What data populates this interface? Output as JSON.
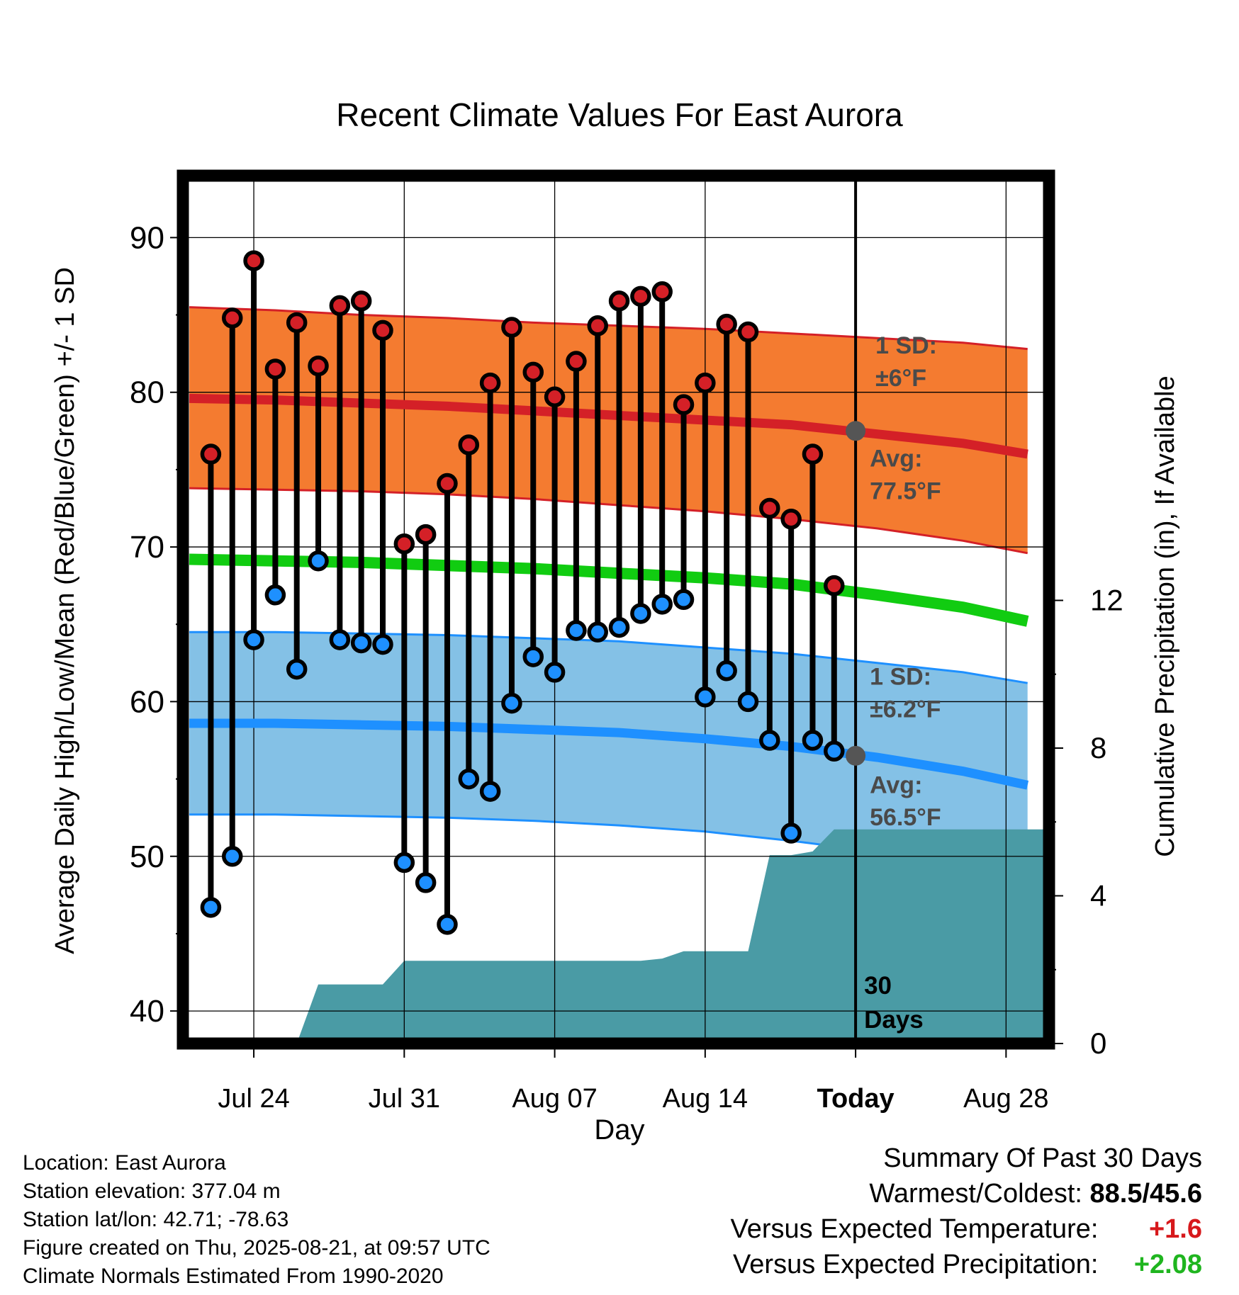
{
  "chart_data": {
    "type": "line",
    "title": "Recent Climate Values For East Aurora",
    "xlabel": "Day",
    "ylabel": "Average Daily High/Low/Mean (Red/Blue/Green) +/- 1 SD",
    "y2label": "Cumulative Precipitation (in), If Available",
    "xlim": [
      -3.3,
      37
    ],
    "ylim": [
      37.9,
      94
    ],
    "y2lim": [
      0,
      23.5
    ],
    "x_ticks": [
      {
        "x": 0,
        "label": "Jul 24"
      },
      {
        "x": 7,
        "label": "Jul 31"
      },
      {
        "x": 14,
        "label": "Aug 07"
      },
      {
        "x": 21,
        "label": "Aug 14"
      },
      {
        "x": 28,
        "label": "Today"
      },
      {
        "x": 35,
        "label": "Aug 28"
      }
    ],
    "y_ticks": [
      40,
      50,
      60,
      70,
      80,
      90
    ],
    "y2_ticks": [
      0,
      4,
      8,
      12
    ],
    "grid": true,
    "daily": {
      "x": [
        -2,
        -1,
        0,
        1,
        2,
        3,
        4,
        5,
        6,
        7,
        8,
        9,
        10,
        11,
        12,
        13,
        14,
        15,
        16,
        17,
        18,
        19,
        20,
        21,
        22,
        23,
        24,
        25,
        26,
        27
      ],
      "high": [
        76.0,
        84.8,
        88.5,
        81.5,
        84.5,
        81.7,
        85.6,
        85.9,
        84.0,
        70.2,
        70.8,
        74.1,
        76.6,
        80.6,
        84.2,
        81.3,
        79.7,
        82.0,
        84.3,
        85.9,
        86.2,
        86.5,
        79.2,
        80.6,
        84.4,
        83.9,
        72.5,
        71.8,
        76.0,
        67.5
      ],
      "low": [
        46.7,
        50.0,
        64.0,
        66.9,
        62.1,
        69.1,
        64.0,
        63.8,
        63.7,
        49.6,
        48.3,
        45.6,
        55.0,
        54.2,
        59.9,
        62.9,
        61.9,
        64.6,
        64.5,
        64.8,
        65.7,
        66.3,
        66.6,
        60.3,
        62.0,
        60.0,
        57.5,
        51.5,
        57.5,
        56.8
      ]
    },
    "normals_x": [
      -3,
      1,
      5,
      9,
      13,
      17,
      21,
      25,
      29,
      33,
      36
    ],
    "normal_high_mean": [
      79.6,
      79.5,
      79.3,
      79.1,
      78.8,
      78.5,
      78.2,
      77.9,
      77.3,
      76.7,
      76.0
    ],
    "normal_high_upper": [
      85.5,
      85.3,
      85.0,
      84.8,
      84.5,
      84.3,
      84.1,
      83.8,
      83.5,
      83.2,
      82.8
    ],
    "normal_high_lower": [
      73.8,
      73.7,
      73.6,
      73.4,
      73.1,
      72.7,
      72.3,
      71.8,
      71.2,
      70.4,
      69.6
    ],
    "normal_mean": [
      69.2,
      69.1,
      69.0,
      68.8,
      68.6,
      68.3,
      68.0,
      67.6,
      66.9,
      66.1,
      65.2
    ],
    "normal_low_mean": [
      58.6,
      58.6,
      58.5,
      58.4,
      58.2,
      58.0,
      57.6,
      57.1,
      56.4,
      55.5,
      54.6
    ],
    "normal_low_upper": [
      64.5,
      64.5,
      64.4,
      64.3,
      64.1,
      63.9,
      63.5,
      63.1,
      62.5,
      61.9,
      61.2
    ],
    "normal_low_lower": [
      52.7,
      52.7,
      52.6,
      52.5,
      52.3,
      52.0,
      51.6,
      51.0,
      50.3,
      49.2,
      48.1
    ],
    "precip": {
      "x": [
        -3.3,
        2,
        3,
        6,
        7,
        10,
        14,
        18,
        19,
        20,
        21,
        22,
        23,
        24,
        25,
        26,
        27,
        37
      ],
      "values": [
        0,
        0,
        1.6,
        1.6,
        2.24,
        2.24,
        2.24,
        2.24,
        2.3,
        2.5,
        2.5,
        2.5,
        2.5,
        5.1,
        5.1,
        5.2,
        5.8,
        5.8
      ]
    },
    "annotations": {
      "high_sd_label": "1 SD:",
      "high_sd_value": "±6°F",
      "high_avg_label": "Avg:",
      "high_avg_value": "77.5°F",
      "low_sd_label": "1 SD:",
      "low_sd_value": "±6.2°F",
      "low_avg_label": "Avg:",
      "low_avg_value": "56.5°F",
      "window_count": "30",
      "window_unit": "Days",
      "today_high_avg": 77.5,
      "today_low_avg": 56.5
    },
    "colors": {
      "high_band": "#f47b30",
      "high_line": "#d42027",
      "mean_line": "#11cc11",
      "low_band": "#84c1e6",
      "low_line": "#1e90ff",
      "precip_fill": "#4a9ba5",
      "high_marker": "#d42027",
      "low_marker": "#1e90ff",
      "annotation_text": "#4a4a4a"
    }
  },
  "footer": {
    "location": "Location: East Aurora",
    "elevation": "Station elevation: 377.04 m",
    "latlon": "Station lat/lon: 42.71; -78.63",
    "created": "Figure created on Thu, 2025-08-21, at 09:57 UTC",
    "normals": "Climate Normals Estimated From 1990-2020"
  },
  "summary": {
    "title": "Summary Of Past 30 Days",
    "warmest_coldest_label": "Warmest/Coldest:",
    "warmest_coldest_value": "88.5/45.6",
    "temp_label": "Versus Expected Temperature:",
    "temp_value": "+1.6",
    "precip_label": "Versus Expected Precipitation:",
    "precip_value": "+2.08"
  }
}
